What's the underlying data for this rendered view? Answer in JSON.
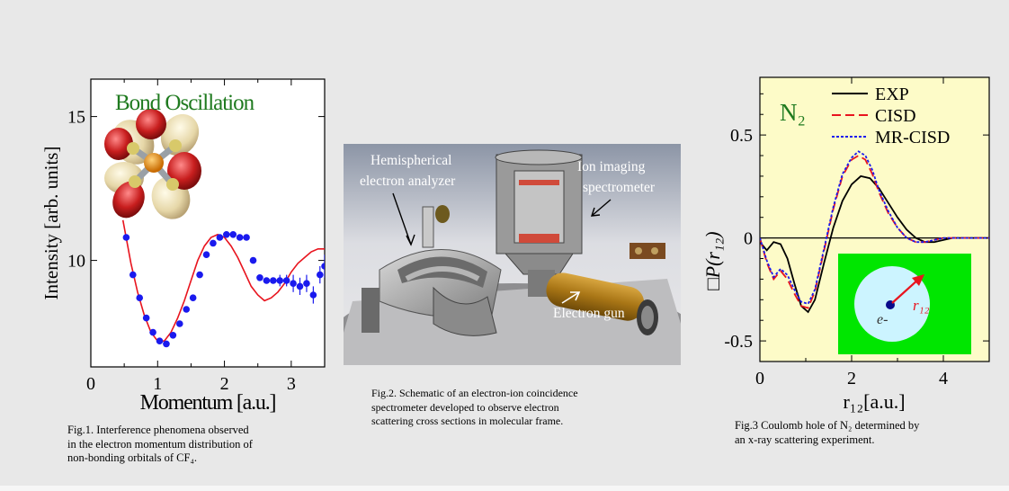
{
  "fig1": {
    "chart_data": {
      "type": "scatter",
      "title": "Bond Oscillation",
      "xlabel": "Momentum [a.u.]",
      "ylabel": "Intensity [arb. units]",
      "xlim": [
        0,
        3.5
      ],
      "ylim": [
        6.3,
        16.3
      ],
      "xticks": [
        0,
        1,
        2,
        3
      ],
      "yticks": [
        10,
        15
      ],
      "series": [
        {
          "kind": "points",
          "color": "#1a1aee",
          "x": [
            0.53,
            0.63,
            0.73,
            0.83,
            0.93,
            1.03,
            1.13,
            1.23,
            1.33,
            1.43,
            1.53,
            1.63,
            1.73,
            1.83,
            1.93,
            2.03,
            2.13,
            2.23,
            2.33,
            2.43,
            2.53,
            2.63,
            2.73,
            2.83,
            2.93,
            3.03,
            3.13,
            3.23,
            3.33,
            3.43,
            3.5
          ],
          "y": [
            10.8,
            9.5,
            8.7,
            8.0,
            7.5,
            7.2,
            7.1,
            7.4,
            7.8,
            8.3,
            8.7,
            9.5,
            10.2,
            10.6,
            10.8,
            10.9,
            10.9,
            10.8,
            10.8,
            10.0,
            9.4,
            9.3,
            9.3,
            9.3,
            9.3,
            9.2,
            9.1,
            9.2,
            8.8,
            9.5,
            9.8
          ],
          "err": [
            0,
            0,
            0,
            0,
            0,
            0,
            0,
            0,
            0,
            0,
            0,
            0,
            0,
            0,
            0,
            0,
            0,
            0,
            0,
            0,
            0,
            0,
            0,
            0.2,
            0.2,
            0.3,
            0.3,
            0.3,
            0.3,
            0.3,
            0.4
          ]
        },
        {
          "kind": "line",
          "color": "#e8141e",
          "x": [
            0.48,
            0.6,
            0.7,
            0.8,
            0.9,
            1.0,
            1.1,
            1.2,
            1.3,
            1.4,
            1.5,
            1.6,
            1.7,
            1.8,
            1.9,
            2.0,
            2.1,
            2.2,
            2.3,
            2.4,
            2.5,
            2.6,
            2.7,
            2.8,
            2.9,
            3.0,
            3.1,
            3.2,
            3.3,
            3.4,
            3.5
          ],
          "y": [
            11.4,
            9.9,
            8.9,
            8.1,
            7.5,
            7.2,
            7.2,
            7.5,
            8.0,
            8.6,
            9.3,
            10.0,
            10.5,
            10.8,
            10.9,
            10.8,
            10.5,
            10.1,
            9.6,
            9.1,
            8.8,
            8.6,
            8.7,
            8.9,
            9.2,
            9.6,
            9.9,
            10.1,
            10.3,
            10.4,
            10.4
          ]
        }
      ]
    },
    "caption_lines": [
      "Fig.1.  Interference  phenomena  observed",
      "in the electron momentum distribution of",
      "non-bonding orbitals of CF₄."
    ]
  },
  "fig2": {
    "labels": {
      "analyzer_line1": "Hemispherical",
      "analyzer_line2": "electron analyzer",
      "spectrometer_line1": "Ion imaging",
      "spectrometer_line2": "spectrometer",
      "gun": "Electron gun"
    },
    "caption_lines": [
      "Fig.2.  Schematic  of  an  electron-ion  coincidence",
      "spectrometer  developed  to  observe  electron",
      "scattering cross sections in molecular frame."
    ]
  },
  "fig3": {
    "chart_data": {
      "type": "line",
      "panel_label": "N₂",
      "xlabel": "r₁₂[a.u.]",
      "ylabel": "□P(r₁₂)",
      "xlim": [
        0,
        5
      ],
      "ylim": [
        -0.6,
        0.78
      ],
      "xticks": [
        0,
        2,
        4
      ],
      "yticks": [
        0.5,
        0,
        -0.5
      ],
      "background": "#fdfbc8",
      "legend_placement": "top-right",
      "series": [
        {
          "name": "EXP",
          "color": "#000000",
          "style": "solid",
          "x": [
            0,
            0.15,
            0.3,
            0.45,
            0.6,
            0.75,
            0.9,
            1.05,
            1.2,
            1.4,
            1.6,
            1.8,
            2.0,
            2.2,
            2.4,
            2.6,
            2.8,
            3.0,
            3.2,
            3.4,
            3.6,
            3.8,
            4.0,
            4.2,
            4.5,
            5.0
          ],
          "y": [
            -0.02,
            -0.06,
            -0.02,
            -0.03,
            -0.1,
            -0.22,
            -0.33,
            -0.36,
            -0.3,
            -0.12,
            0.05,
            0.18,
            0.26,
            0.3,
            0.29,
            0.24,
            0.17,
            0.1,
            0.04,
            0.0,
            -0.02,
            -0.02,
            -0.01,
            0.0,
            0.0,
            0.0
          ]
        },
        {
          "name": "CISD",
          "color": "#e8141e",
          "style": "dashed",
          "x": [
            0,
            0.15,
            0.3,
            0.45,
            0.6,
            0.75,
            0.9,
            1.05,
            1.2,
            1.4,
            1.6,
            1.8,
            2.0,
            2.15,
            2.3,
            2.45,
            2.6,
            2.8,
            3.0,
            3.2,
            3.4,
            3.6,
            3.8,
            4.0,
            4.5,
            5.0
          ],
          "y": [
            0.0,
            -0.12,
            -0.2,
            -0.16,
            -0.2,
            -0.27,
            -0.33,
            -0.34,
            -0.26,
            -0.06,
            0.14,
            0.3,
            0.38,
            0.4,
            0.38,
            0.31,
            0.22,
            0.12,
            0.05,
            0.0,
            -0.02,
            -0.02,
            -0.01,
            0.0,
            0.0,
            0.0
          ]
        },
        {
          "name": "MR-CISD",
          "color": "#1a1aee",
          "style": "dotted",
          "x": [
            0,
            0.15,
            0.3,
            0.45,
            0.6,
            0.75,
            0.9,
            1.05,
            1.2,
            1.4,
            1.6,
            1.8,
            2.0,
            2.15,
            2.3,
            2.45,
            2.6,
            2.8,
            3.0,
            3.2,
            3.4,
            3.6,
            3.8,
            4.0,
            4.5,
            5.0
          ],
          "y": [
            0.0,
            -0.11,
            -0.19,
            -0.15,
            -0.18,
            -0.25,
            -0.31,
            -0.32,
            -0.25,
            -0.05,
            0.15,
            0.31,
            0.39,
            0.42,
            0.4,
            0.33,
            0.23,
            0.13,
            0.05,
            0.0,
            -0.02,
            -0.02,
            -0.01,
            0.0,
            0.0,
            0.0
          ]
        }
      ]
    },
    "inset": {
      "electron_label": "e-",
      "r_label": "r₁₂",
      "background": "#00e600",
      "circle_fill": "#ccf4ff"
    },
    "caption_lines": [
      "Fig.3  Coulomb hole of N₂ determined by",
      "an x-ray scattering experiment."
    ]
  }
}
